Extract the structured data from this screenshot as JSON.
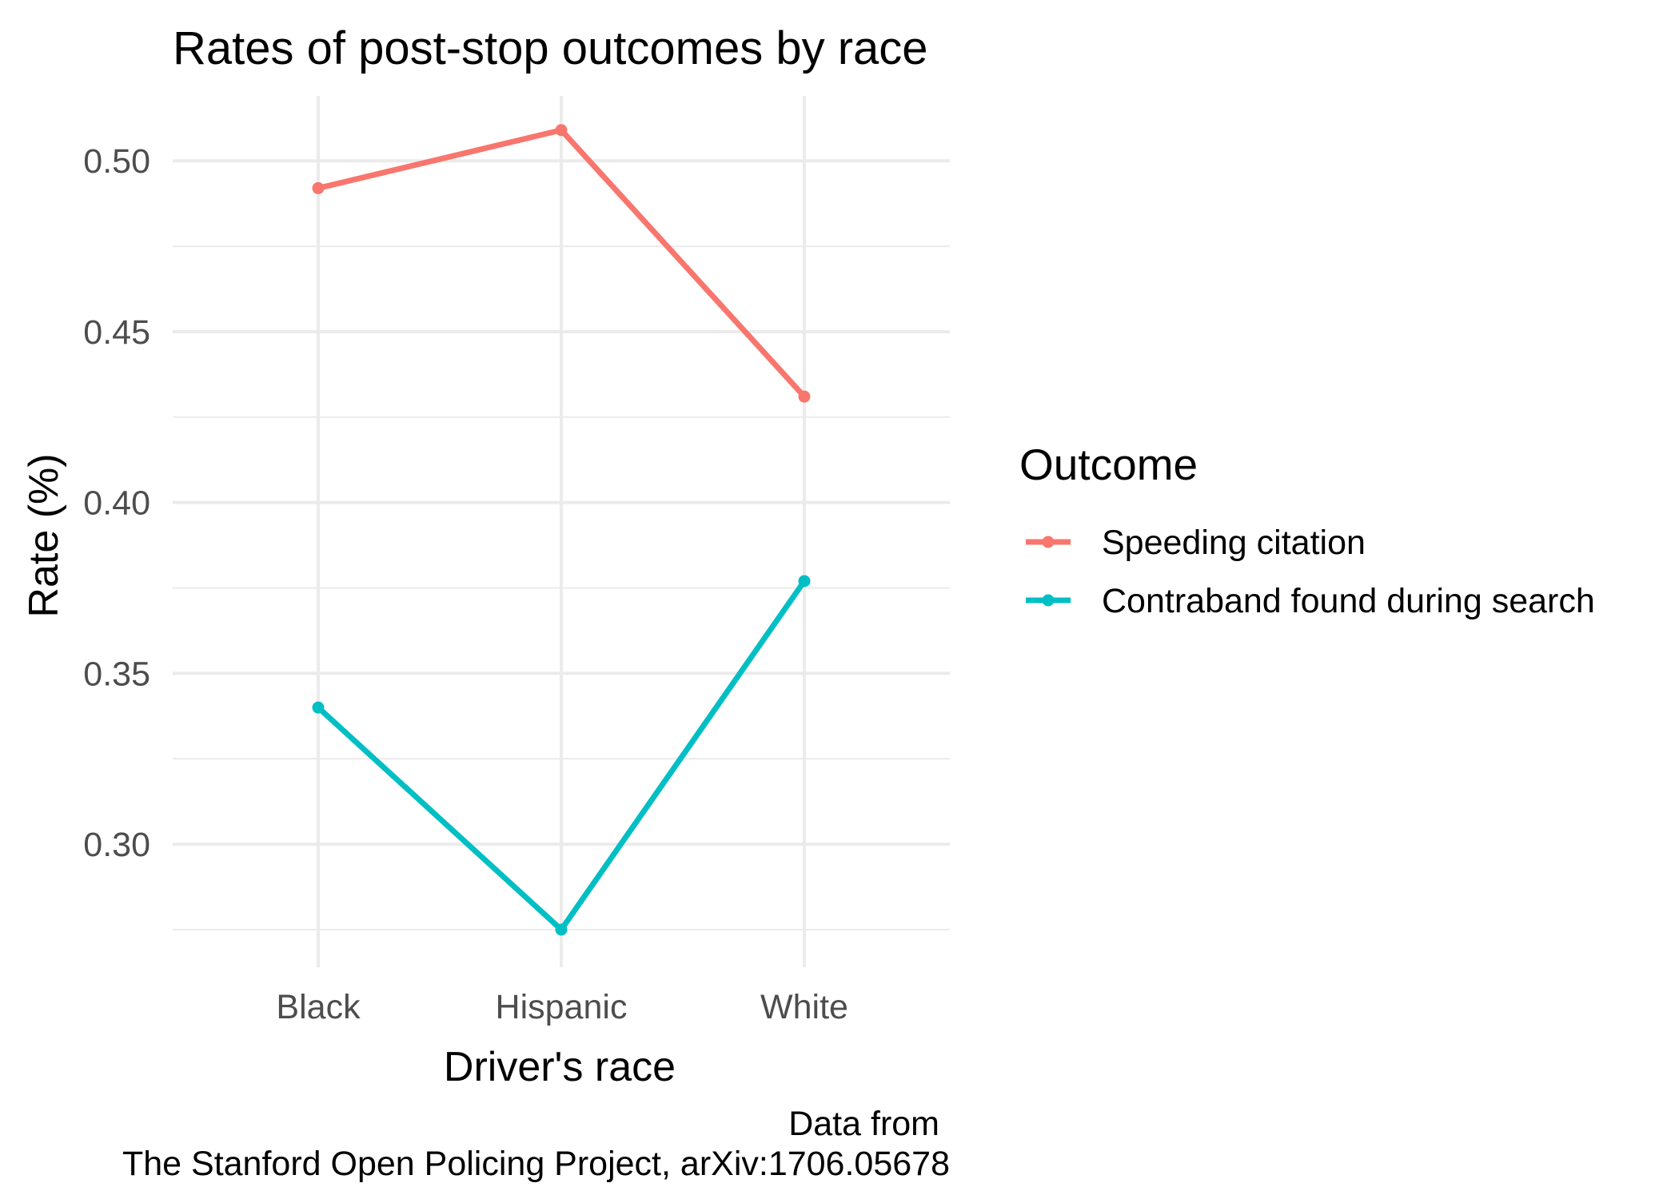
{
  "chart_data": {
    "type": "line",
    "title": "Rates of post-stop outcomes by race",
    "xlabel": "Driver's race",
    "ylabel": "Rate (%)",
    "categories": [
      "Black",
      "Hispanic",
      "White"
    ],
    "series": [
      {
        "name": "Speeding citation",
        "color": "#f8766d",
        "values": [
          0.492,
          0.509,
          0.431
        ]
      },
      {
        "name": "Contraband found during search",
        "color": "#00bfc4",
        "values": [
          0.34,
          0.275,
          0.377
        ]
      }
    ],
    "ylim": [
      0.264,
      0.519
    ],
    "yticks": [
      "0.30",
      "0.35",
      "0.40",
      "0.45",
      "0.50"
    ],
    "grid": true,
    "legend": {
      "title": "Outcome",
      "position": "right"
    },
    "caption": [
      "Data from",
      "The Stanford Open Policing Project, arXiv:1706.05678"
    ]
  }
}
